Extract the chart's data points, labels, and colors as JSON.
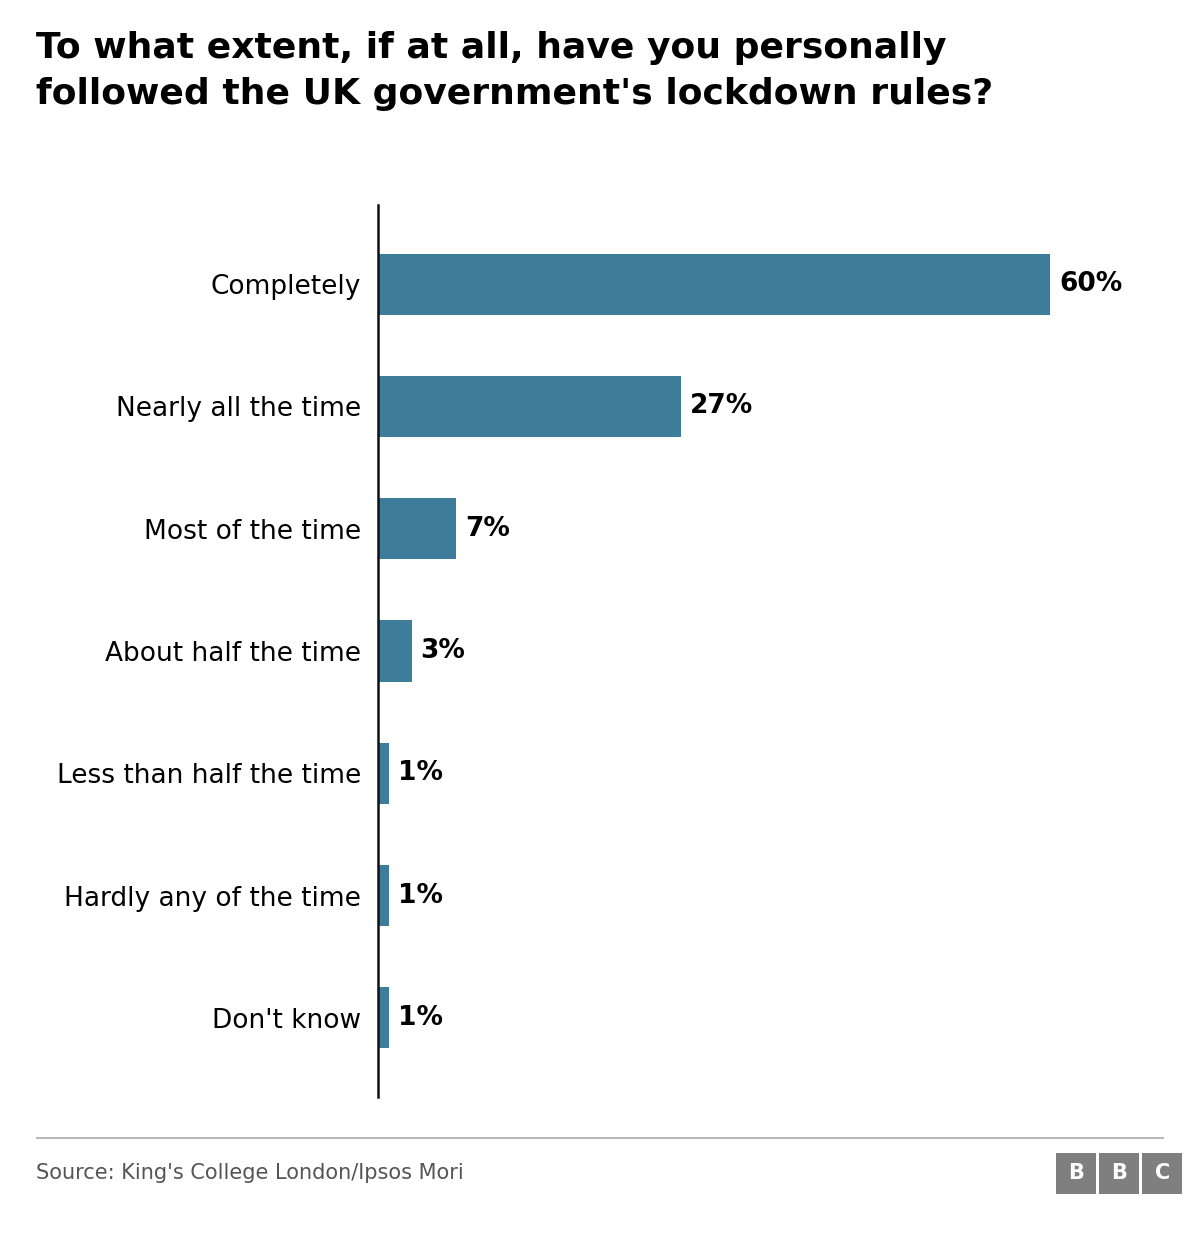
{
  "title_line1": "To what extent, if at all, have you personally",
  "title_line2": "followed the UK government's lockdown rules?",
  "categories": [
    "Completely",
    "Nearly all the time",
    "Most of the time",
    "About half the time",
    "Less than half the time",
    "Hardly any of the time",
    "Don't know"
  ],
  "values": [
    60,
    27,
    7,
    3,
    1,
    1,
    1
  ],
  "bar_color": "#3d7d9a",
  "label_color": "#000000",
  "title_color": "#000000",
  "source_text": "Source: King's College London/Ipsos Mori",
  "background_color": "#ffffff",
  "xlim": [
    0,
    68
  ],
  "title_fontsize": 26,
  "label_fontsize": 19,
  "value_fontsize": 19,
  "source_fontsize": 15,
  "bar_height": 0.5
}
